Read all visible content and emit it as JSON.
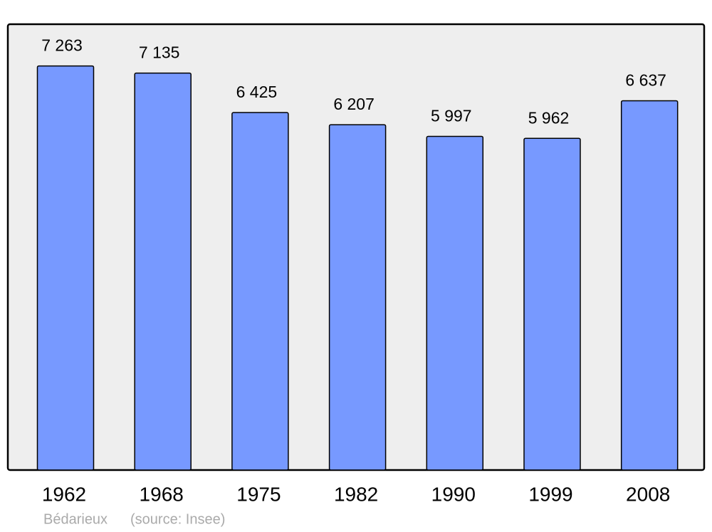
{
  "chart_data": {
    "type": "bar",
    "categories": [
      "1962",
      "1968",
      "1975",
      "1982",
      "1990",
      "1999",
      "2008"
    ],
    "values": [
      7263,
      7135,
      6425,
      6207,
      5997,
      5962,
      6637
    ],
    "value_labels": [
      "7 263",
      "7 135",
      "6 425",
      "6 207",
      "5 997",
      "5 962",
      "6 637"
    ],
    "color": "#7799ff",
    "ylim": [
      0,
      8000
    ],
    "place": "Bédarieux",
    "source": "(source: Insee)"
  }
}
